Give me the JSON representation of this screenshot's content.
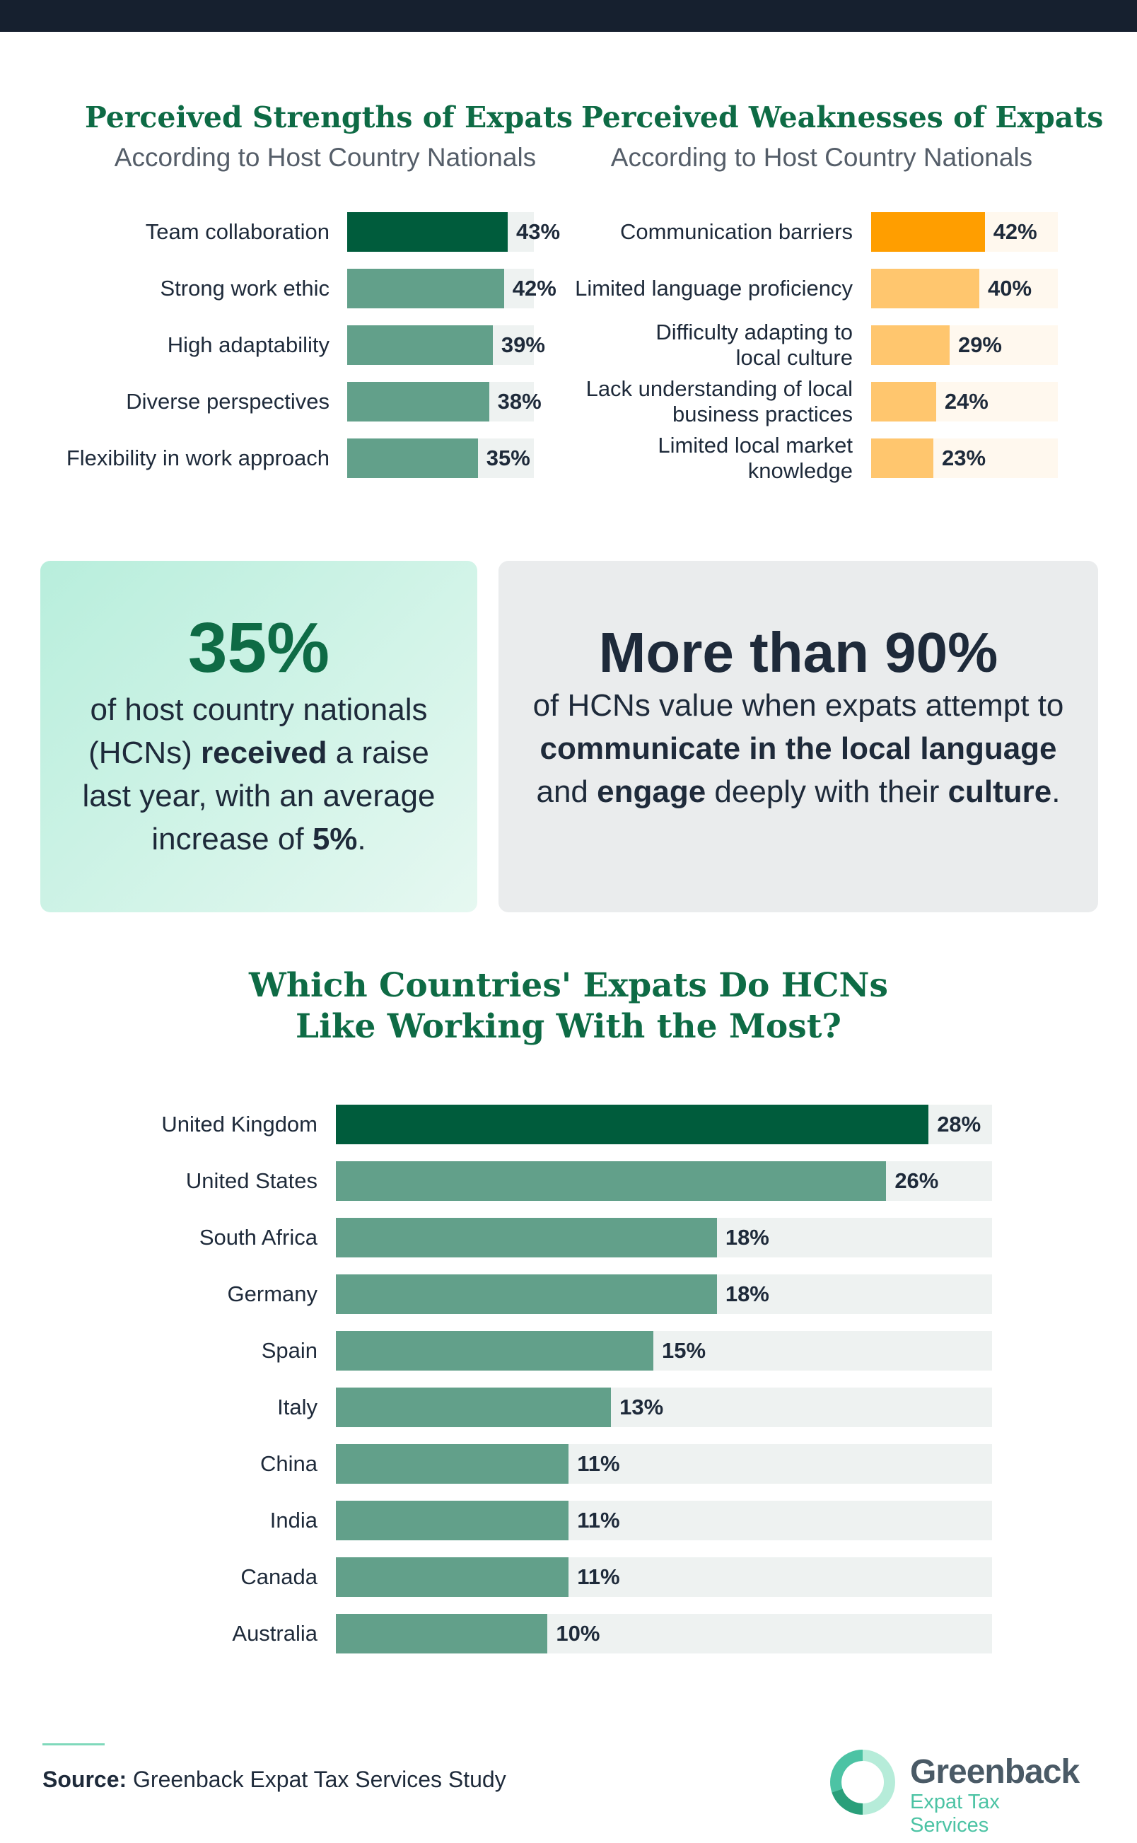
{
  "strengths": {
    "title": "Perceived Strengths of Expats",
    "subtitle": "According to Host Country Nationals",
    "chart_data": {
      "type": "bar",
      "categories": [
        "Team collaboration",
        "Strong work ethic",
        "High adaptability",
        "Diverse perspectives",
        "Flexibility in work approach"
      ],
      "values": [
        43,
        42,
        39,
        38,
        35
      ],
      "labels": [
        "43%",
        "42%",
        "39%",
        "38%",
        "35%"
      ],
      "title": "Perceived Strengths of Expats",
      "subtitle": "According to Host Country Nationals",
      "xlim": [
        0,
        50
      ],
      "orientation": "horizontal",
      "highlight_color": "#005c3c",
      "bar_color": "#62a08a",
      "track_color": "#eef2f1"
    }
  },
  "weaknesses": {
    "title": "Perceived Weaknesses of Expats",
    "subtitle": "According to Host Country Nationals",
    "chart_data": {
      "type": "bar",
      "categories": [
        "Communication barriers",
        "Limited language proficiency",
        "Difficulty adapting to\nlocal culture",
        "Lack understanding of local\nbusiness practices",
        "Limited local market\nknowledge"
      ],
      "values": [
        42,
        40,
        29,
        24,
        23
      ],
      "labels": [
        "42%",
        "40%",
        "29%",
        "24%",
        "23%"
      ],
      "title": "Perceived Weaknesses of Expats",
      "subtitle": "According to Host Country Nationals",
      "xlim": [
        0,
        69
      ],
      "orientation": "horizontal",
      "highlight_color": "#ff9e00",
      "bar_color": "#ffc66e",
      "track_color": "#fff8ee"
    }
  },
  "stat_left": {
    "big": "35%",
    "text_html": "of host country nationals (HCNs) <b>received</b> a raise last year, with an average increase of <b>5%</b>.",
    "bg_color": "#d9f5ec",
    "accent_color": "#0e6b45"
  },
  "stat_right": {
    "big": "More than 90%",
    "text_html": "of HCNs value when expats attempt to <b>communicate in the local language</b> and <b>engage</b> deeply with their <b>culture</b>.",
    "bg_color": "#eaeced",
    "accent_color": "#1e2a3a"
  },
  "countries": {
    "title_line1": "Which Countries' Expats Do HCNs",
    "title_line2": "Like Working With the Most?",
    "chart_data": {
      "type": "bar",
      "categories": [
        "United Kingdom",
        "United States",
        "South Africa",
        "Germany",
        "Spain",
        "Italy",
        "China",
        "India",
        "Canada",
        "Australia"
      ],
      "values": [
        28,
        26,
        18,
        18,
        15,
        13,
        11,
        11,
        11,
        10
      ],
      "labels": [
        "28%",
        "26%",
        "18%",
        "18%",
        "15%",
        "13%",
        "11%",
        "11%",
        "11%",
        "10%"
      ],
      "title": "Which Countries' Expats Do HCNs Like Working With the Most?",
      "xlim": [
        0,
        31
      ],
      "orientation": "horizontal",
      "highlight_color": "#005c3c",
      "bar_color": "#62a08a",
      "track_color": "#eef2f1"
    }
  },
  "footer": {
    "source_label": "Source:",
    "source_text": "Greenback Expat Tax Services Study",
    "logo_name": "Greenback",
    "logo_tagline": "Expat Tax Services",
    "logo_icon": "greenback-ring-icon"
  }
}
